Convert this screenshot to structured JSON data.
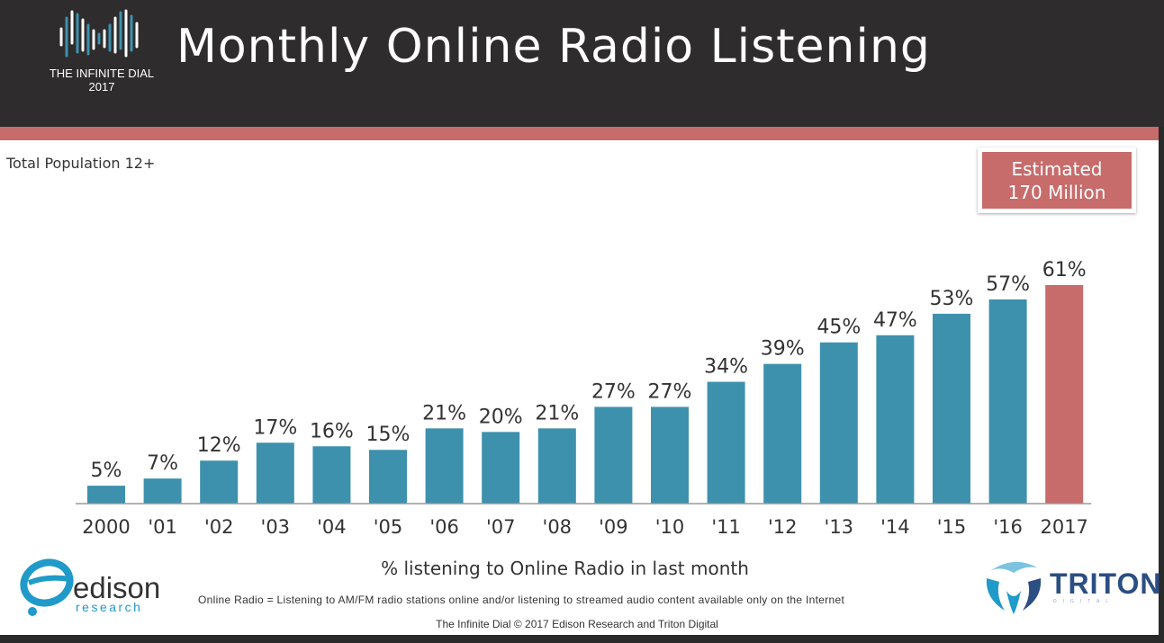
{
  "header": {
    "title": "Monthly Online Radio Listening",
    "logo_line1": "THE INFINITE DIAL",
    "logo_line2": "2017"
  },
  "subtitle": "Total Population 12+",
  "estimate": {
    "line1": "Estimated",
    "line2": "170 Million"
  },
  "chart_data": {
    "type": "bar",
    "categories": [
      "2000",
      "'01",
      "'02",
      "'03",
      "'04",
      "'05",
      "'06",
      "'07",
      "'08",
      "'09",
      "'10",
      "'11",
      "'12",
      "'13",
      "'14",
      "'15",
      "'16",
      "2017"
    ],
    "values": [
      5,
      7,
      12,
      17,
      16,
      15,
      21,
      20,
      21,
      27,
      27,
      34,
      39,
      45,
      47,
      53,
      57,
      61
    ],
    "data_labels": [
      "5%",
      "7%",
      "12%",
      "17%",
      "16%",
      "15%",
      "21%",
      "20%",
      "21%",
      "27%",
      "27%",
      "34%",
      "39%",
      "45%",
      "47%",
      "53%",
      "57%",
      "61%"
    ],
    "title": "% listening to Online Radio in last month",
    "xlabel": "",
    "ylabel": "",
    "ylim": [
      0,
      61
    ],
    "grid": false,
    "colors": {
      "default": "#3d91ad",
      "highlight": "#c76b6b"
    },
    "highlight_index": 17
  },
  "footnote": "Online Radio = Listening to AM/FM radio stations online and/or listening to streamed audio content available only on the Internet",
  "copyright": "The Infinite Dial  © 2017 Edison Research and Triton Digital",
  "logos": {
    "edison_word": "edison",
    "edison_sub": "research",
    "triton_word": "TRITON",
    "triton_sub": "DIGITAL"
  },
  "colors": {
    "header_bg": "#2e2c2c",
    "accent": "#c76b6b",
    "bar": "#3d91ad"
  }
}
